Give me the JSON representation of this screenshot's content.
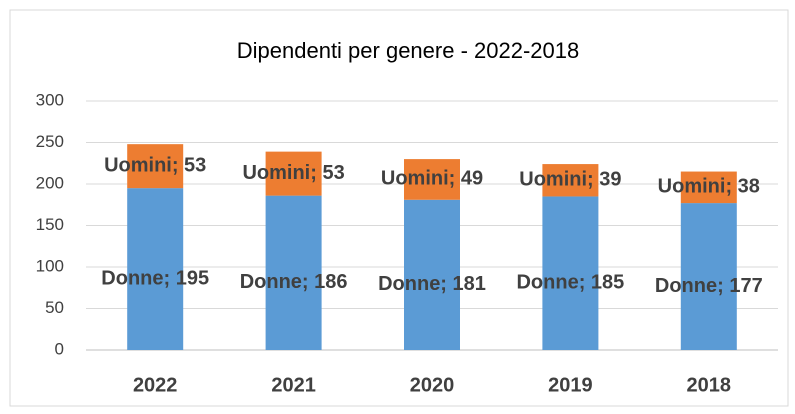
{
  "chart_data": {
    "type": "stacked_bar",
    "title": "Dipendenti per genere - 2022-2018",
    "categories": [
      "2022",
      "2021",
      "2020",
      "2019",
      "2018"
    ],
    "series": [
      {
        "name": "Donne",
        "color": "#5b9bd5",
        "values": [
          195,
          186,
          181,
          185,
          177
        ],
        "value_labels": [
          "Donne; 195",
          "Donne; 186",
          "Donne; 181",
          "Donne; 185",
          "Donne; 177"
        ]
      },
      {
        "name": "Uomini",
        "color": "#ed7d31",
        "values": [
          53,
          53,
          49,
          39,
          38
        ],
        "value_labels": [
          "Uomini; 53",
          "Uomini; 53",
          "Uomini; 49",
          "Uomini; 39",
          "Uomini; 38"
        ]
      }
    ],
    "ylim": [
      0,
      300
    ],
    "yticks": [
      0,
      50,
      100,
      150,
      200,
      250,
      300
    ],
    "grid": true
  }
}
